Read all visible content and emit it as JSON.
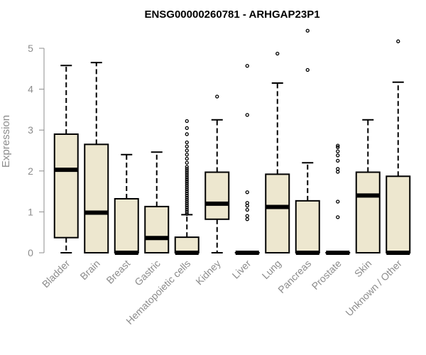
{
  "chart_data": {
    "type": "boxplot",
    "title": "ENSG00000260781 - ARHGAP23P1",
    "ylabel": "Expression",
    "xlabel": "",
    "ylim": [
      0,
      5.5
    ],
    "yticks": [
      0,
      1,
      2,
      3,
      4,
      5
    ],
    "grid": false,
    "colors": {
      "box_fill": "#ede7cf",
      "stroke": "#000000",
      "axis": "#8c8c8c"
    },
    "categories": [
      "Bladder",
      "Brain",
      "Breast",
      "Gastric",
      "Hematopoietic cells",
      "Kidney",
      "Liver",
      "Lung",
      "Pancreas",
      "Prostate",
      "Skin",
      "Unknown / Other"
    ],
    "boxes": [
      {
        "label": "Bladder",
        "whisker_low": 0,
        "q1": 0.37,
        "median": 2.03,
        "q3": 2.9,
        "whisker_high": 4.58,
        "outliers": []
      },
      {
        "label": "Brain",
        "whisker_low": 0,
        "q1": 0,
        "median": 0.98,
        "q3": 2.65,
        "whisker_high": 4.65,
        "outliers": []
      },
      {
        "label": "Breast",
        "whisker_low": 0,
        "q1": 0,
        "median": 0,
        "q3": 1.32,
        "whisker_high": 2.4,
        "outliers": []
      },
      {
        "label": "Gastric",
        "whisker_low": 0,
        "q1": 0,
        "median": 0.36,
        "q3": 1.13,
        "whisker_high": 2.46,
        "outliers": []
      },
      {
        "label": "Hematopoietic cells",
        "whisker_low": 0,
        "q1": 0,
        "median": 0,
        "q3": 0.38,
        "whisker_high": 0.93,
        "outliers": [
          0.95,
          1.0,
          1.05,
          1.1,
          1.15,
          1.2,
          1.25,
          1.3,
          1.35,
          1.4,
          1.45,
          1.5,
          1.55,
          1.6,
          1.65,
          1.7,
          1.75,
          1.8,
          1.85,
          1.9,
          1.95,
          2.0,
          2.05,
          2.1,
          2.2,
          2.3,
          2.4,
          2.5,
          2.6,
          2.7,
          2.9,
          3.05,
          3.22
        ]
      },
      {
        "label": "Kidney",
        "whisker_low": 0,
        "q1": 0.82,
        "median": 1.2,
        "q3": 1.97,
        "whisker_high": 3.25,
        "outliers": [
          3.82
        ]
      },
      {
        "label": "Liver",
        "whisker_low": 0,
        "q1": 0,
        "median": 0,
        "q3": 0,
        "whisker_high": 0,
        "outliers": [
          0.82,
          0.9,
          1.05,
          1.15,
          1.22,
          1.48,
          3.37,
          4.57
        ]
      },
      {
        "label": "Lung",
        "whisker_low": 0,
        "q1": 0,
        "median": 1.12,
        "q3": 1.92,
        "whisker_high": 4.15,
        "outliers": [
          4.87
        ]
      },
      {
        "label": "Pancreas",
        "whisker_low": 0,
        "q1": 0,
        "median": 0,
        "q3": 1.27,
        "whisker_high": 2.2,
        "outliers": [
          4.47,
          5.43
        ]
      },
      {
        "label": "Prostate",
        "whisker_low": 0,
        "q1": 0,
        "median": 0,
        "q3": 0,
        "whisker_high": 0,
        "outliers": [
          0.87,
          1.25,
          1.98,
          2.05,
          2.25,
          2.38,
          2.48,
          2.58,
          2.62
        ]
      },
      {
        "label": "Skin",
        "whisker_low": 0,
        "q1": 0,
        "median": 1.4,
        "q3": 1.97,
        "whisker_high": 3.25,
        "outliers": []
      },
      {
        "label": "Unknown / Other",
        "whisker_low": 0,
        "q1": 0,
        "median": 0,
        "q3": 1.87,
        "whisker_high": 4.17,
        "outliers": [
          5.17
        ]
      }
    ]
  }
}
